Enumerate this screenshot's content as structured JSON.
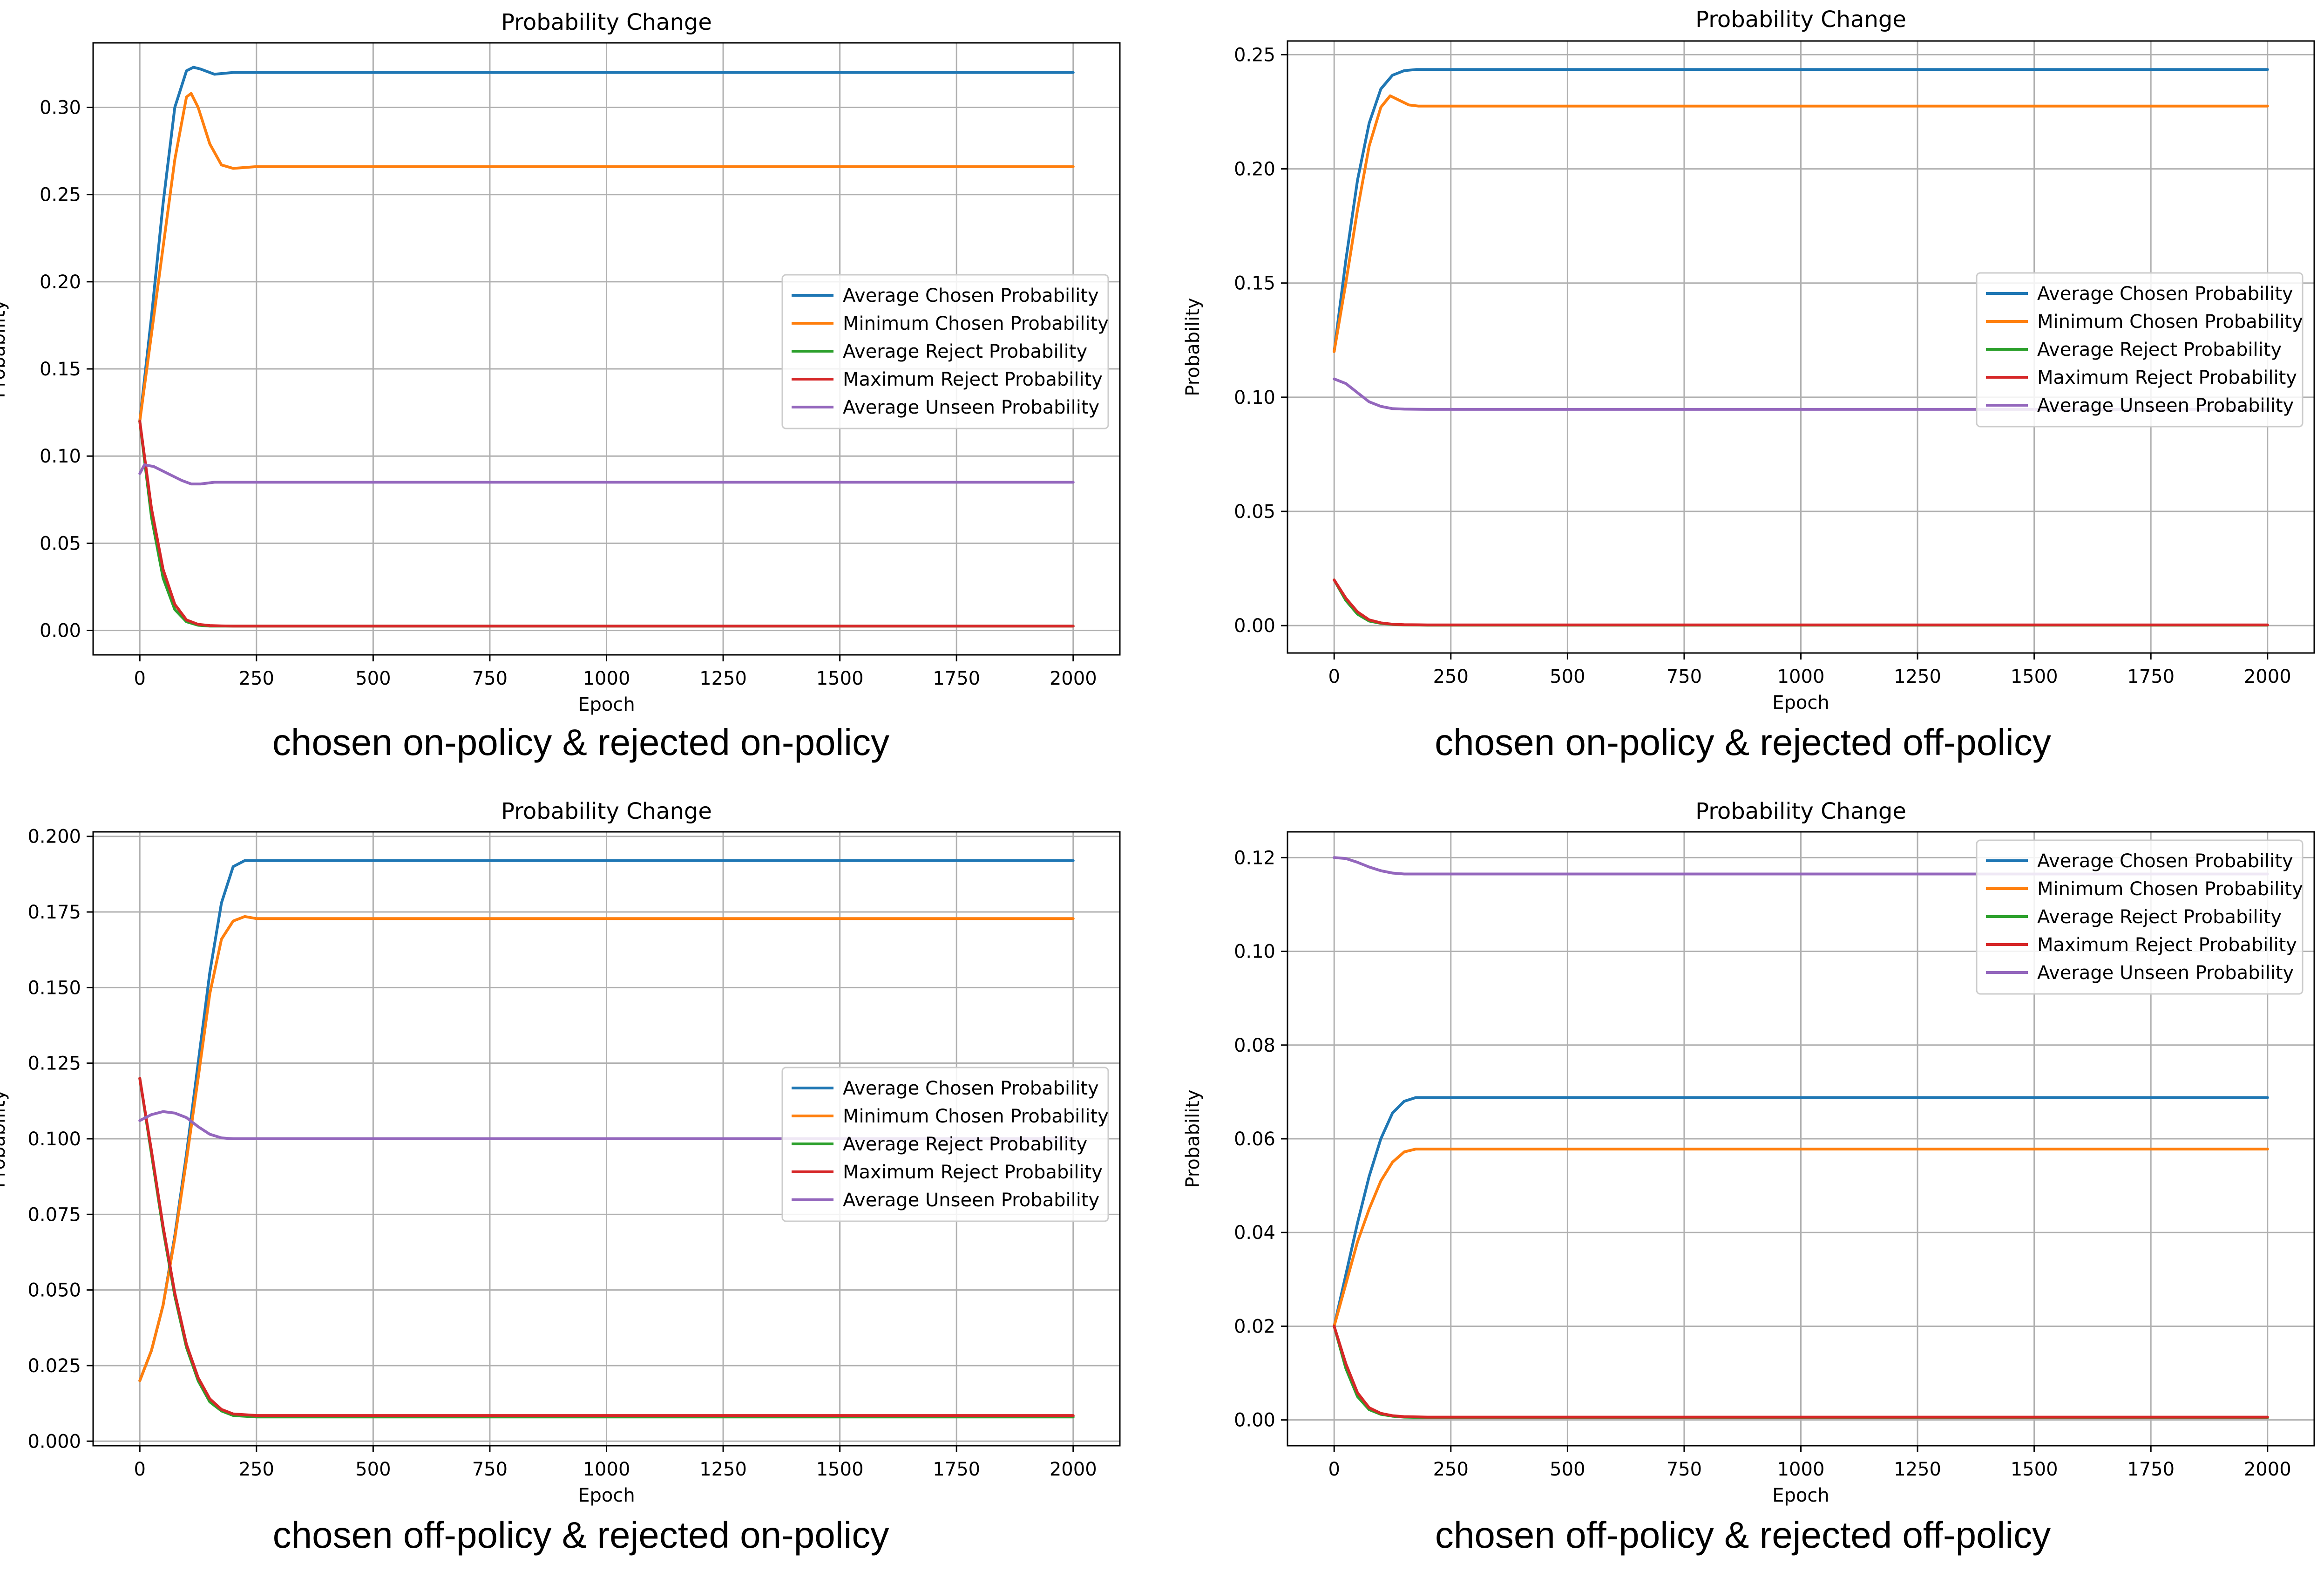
{
  "colors": {
    "avg_chosen": "#1f77b4",
    "min_chosen": "#ff7f0e",
    "avg_reject": "#2ca02c",
    "max_reject": "#d62728",
    "avg_unseen": "#9467bd"
  },
  "captions": [
    "chosen on-policy & rejected on-policy",
    "chosen on-policy & rejected off-policy",
    "chosen off-policy & rejected on-policy",
    "chosen off-policy & rejected off-policy"
  ],
  "chart_data": [
    {
      "type": "line",
      "title": "Probability Change",
      "xlabel": "Epoch",
      "ylabel": "Probability",
      "xlim": [
        -100,
        2100
      ],
      "ylim": [
        -0.014,
        0.337
      ],
      "xticks": [
        0,
        250,
        500,
        750,
        1000,
        1250,
        1500,
        1750,
        2000
      ],
      "xtick_labels": [
        "0",
        "250",
        "500",
        "750",
        "1000",
        "1250",
        "1500",
        "1750",
        "2000"
      ],
      "yticks": [
        0,
        0.05,
        0.1,
        0.15,
        0.2,
        0.25,
        0.3
      ],
      "ytick_labels": [
        "0.00",
        "0.05",
        "0.10",
        "0.15",
        "0.20",
        "0.25",
        "0.30"
      ],
      "grid": true,
      "legend_position": "center-right",
      "series": [
        {
          "name": "Average Chosen Probability",
          "color_key": "avg_chosen",
          "x": [
            0,
            25,
            50,
            75,
            100,
            115,
            130,
            160,
            200,
            250,
            500,
            1000,
            1500,
            2000
          ],
          "y": [
            0.12,
            0.18,
            0.245,
            0.3,
            0.321,
            0.323,
            0.322,
            0.319,
            0.32,
            0.32,
            0.32,
            0.32,
            0.32,
            0.32
          ]
        },
        {
          "name": "Minimum Chosen Probability",
          "color_key": "min_chosen",
          "x": [
            0,
            25,
            50,
            75,
            100,
            110,
            125,
            150,
            175,
            200,
            250,
            500,
            1000,
            1500,
            2000
          ],
          "y": [
            0.12,
            0.17,
            0.22,
            0.27,
            0.306,
            0.308,
            0.3,
            0.279,
            0.267,
            0.265,
            0.266,
            0.266,
            0.266,
            0.266,
            0.266
          ]
        },
        {
          "name": "Average Reject Probability",
          "color_key": "avg_reject",
          "x": [
            0,
            25,
            50,
            75,
            100,
            125,
            150,
            175,
            200,
            250,
            500,
            1000,
            1500,
            2000
          ],
          "y": [
            0.12,
            0.065,
            0.03,
            0.012,
            0.005,
            0.003,
            0.0025,
            0.0025,
            0.0025,
            0.0025,
            0.0025,
            0.0025,
            0.0025,
            0.0025
          ]
        },
        {
          "name": "Maximum Reject Probability",
          "color_key": "max_reject",
          "x": [
            0,
            25,
            50,
            75,
            100,
            125,
            150,
            175,
            200,
            250,
            500,
            1000,
            1500,
            2000
          ],
          "y": [
            0.12,
            0.07,
            0.035,
            0.015,
            0.006,
            0.0035,
            0.0028,
            0.0026,
            0.0025,
            0.0025,
            0.0025,
            0.0025,
            0.0025,
            0.0025
          ]
        },
        {
          "name": "Average Unseen Probability",
          "color_key": "avg_unseen",
          "x": [
            0,
            10,
            30,
            60,
            90,
            110,
            130,
            160,
            200,
            500,
            1000,
            1500,
            2000
          ],
          "y": [
            0.09,
            0.095,
            0.094,
            0.09,
            0.086,
            0.084,
            0.084,
            0.085,
            0.085,
            0.085,
            0.085,
            0.085,
            0.085
          ]
        }
      ],
      "legend": [
        "Average Chosen Probability",
        "Minimum Chosen Probability",
        "Average Reject Probability",
        "Maximum Reject Probability",
        "Average Unseen Probability"
      ]
    },
    {
      "type": "line",
      "title": "Probability Change",
      "xlabel": "Epoch",
      "ylabel": "Probability",
      "xlim": [
        -100,
        2100
      ],
      "ylim": [
        -0.012,
        0.256
      ],
      "xticks": [
        0,
        250,
        500,
        750,
        1000,
        1250,
        1500,
        1750,
        2000
      ],
      "xtick_labels": [
        "0",
        "250",
        "500",
        "750",
        "1000",
        "1250",
        "1500",
        "1750",
        "2000"
      ],
      "yticks": [
        0,
        0.05,
        0.1,
        0.15,
        0.2,
        0.25
      ],
      "ytick_labels": [
        "0.00",
        "0.05",
        "0.10",
        "0.15",
        "0.20",
        "0.25"
      ],
      "grid": true,
      "legend_position": "center-right",
      "series": [
        {
          "name": "Average Chosen Probability",
          "color_key": "avg_chosen",
          "x": [
            0,
            25,
            50,
            75,
            100,
            125,
            150,
            175,
            200,
            250,
            500,
            1000,
            1500,
            2000
          ],
          "y": [
            0.12,
            0.16,
            0.195,
            0.22,
            0.235,
            0.241,
            0.243,
            0.2435,
            0.2435,
            0.2435,
            0.2435,
            0.2435,
            0.2435,
            0.2435
          ]
        },
        {
          "name": "Minimum Chosen Probability",
          "color_key": "min_chosen",
          "x": [
            0,
            25,
            50,
            75,
            100,
            120,
            140,
            160,
            180,
            200,
            250,
            500,
            1000,
            1500,
            2000
          ],
          "y": [
            0.12,
            0.15,
            0.182,
            0.21,
            0.227,
            0.232,
            0.23,
            0.228,
            0.2275,
            0.2275,
            0.2275,
            0.2275,
            0.2275,
            0.2275,
            0.2275
          ]
        },
        {
          "name": "Average Reject Probability",
          "color_key": "avg_reject",
          "x": [
            0,
            25,
            50,
            75,
            100,
            125,
            150,
            200,
            500,
            1000,
            1500,
            2000
          ],
          "y": [
            0.02,
            0.011,
            0.005,
            0.002,
            0.001,
            0.0005,
            0.0003,
            0.0002,
            0.0002,
            0.0002,
            0.0002,
            0.0002
          ]
        },
        {
          "name": "Maximum Reject Probability",
          "color_key": "max_reject",
          "x": [
            0,
            25,
            50,
            75,
            100,
            125,
            150,
            200,
            500,
            1000,
            1500,
            2000
          ],
          "y": [
            0.02,
            0.012,
            0.006,
            0.0025,
            0.0012,
            0.0006,
            0.0004,
            0.0003,
            0.0003,
            0.0003,
            0.0003,
            0.0003
          ]
        },
        {
          "name": "Average Unseen Probability",
          "color_key": "avg_unseen",
          "x": [
            0,
            25,
            50,
            75,
            100,
            125,
            150,
            200,
            500,
            1000,
            1500,
            2000
          ],
          "y": [
            0.108,
            0.106,
            0.102,
            0.098,
            0.096,
            0.095,
            0.0948,
            0.0947,
            0.0947,
            0.0947,
            0.0947,
            0.0947
          ]
        }
      ],
      "legend": [
        "Average Chosen Probability",
        "Minimum Chosen Probability",
        "Average Reject Probability",
        "Maximum Reject Probability",
        "Average Unseen Probability"
      ]
    },
    {
      "type": "line",
      "title": "Probability Change",
      "xlabel": "Epoch",
      "ylabel": "Probability",
      "xlim": [
        -100,
        2100
      ],
      "ylim": [
        -0.0015,
        0.2015
      ],
      "xticks": [
        0,
        250,
        500,
        750,
        1000,
        1250,
        1500,
        1750,
        2000
      ],
      "xtick_labels": [
        "0",
        "250",
        "500",
        "750",
        "1000",
        "1250",
        "1500",
        "1750",
        "2000"
      ],
      "yticks": [
        0,
        0.025,
        0.05,
        0.075,
        0.1,
        0.125,
        0.15,
        0.175,
        0.2
      ],
      "ytick_labels": [
        "0.000",
        "0.025",
        "0.050",
        "0.075",
        "0.100",
        "0.125",
        "0.150",
        "0.175",
        "0.200"
      ],
      "grid": true,
      "legend_position": "center-right",
      "series": [
        {
          "name": "Average Chosen Probability",
          "color_key": "avg_chosen",
          "x": [
            0,
            25,
            50,
            75,
            100,
            125,
            150,
            175,
            200,
            225,
            250,
            500,
            1000,
            1500,
            2000
          ],
          "y": [
            0.02,
            0.03,
            0.045,
            0.068,
            0.095,
            0.125,
            0.155,
            0.178,
            0.19,
            0.192,
            0.192,
            0.192,
            0.192,
            0.192,
            0.192
          ]
        },
        {
          "name": "Minimum Chosen Probability",
          "color_key": "min_chosen",
          "x": [
            0,
            25,
            50,
            75,
            100,
            125,
            150,
            175,
            200,
            225,
            250,
            500,
            1000,
            1500,
            2000
          ],
          "y": [
            0.02,
            0.03,
            0.045,
            0.067,
            0.093,
            0.12,
            0.148,
            0.166,
            0.172,
            0.1735,
            0.1728,
            0.1728,
            0.1728,
            0.1728,
            0.1728
          ]
        },
        {
          "name": "Average Reject Probability",
          "color_key": "avg_reject",
          "x": [
            0,
            25,
            50,
            75,
            100,
            125,
            150,
            175,
            200,
            250,
            500,
            1000,
            1500,
            2000
          ],
          "y": [
            0.12,
            0.095,
            0.07,
            0.048,
            0.031,
            0.02,
            0.013,
            0.01,
            0.0085,
            0.008,
            0.008,
            0.008,
            0.008,
            0.008
          ]
        },
        {
          "name": "Maximum Reject Probability",
          "color_key": "max_reject",
          "x": [
            0,
            25,
            50,
            75,
            100,
            125,
            150,
            175,
            200,
            250,
            500,
            1000,
            1500,
            2000
          ],
          "y": [
            0.12,
            0.096,
            0.071,
            0.049,
            0.032,
            0.021,
            0.014,
            0.0105,
            0.009,
            0.0085,
            0.0085,
            0.0085,
            0.0085,
            0.0085
          ]
        },
        {
          "name": "Average Unseen Probability",
          "color_key": "avg_unseen",
          "x": [
            0,
            25,
            50,
            75,
            100,
            125,
            150,
            175,
            200,
            250,
            500,
            1000,
            1500,
            2000
          ],
          "y": [
            0.106,
            0.108,
            0.109,
            0.1085,
            0.107,
            0.104,
            0.1015,
            0.1003,
            0.1,
            0.1,
            0.1,
            0.1,
            0.1,
            0.1
          ]
        }
      ],
      "legend": [
        "Average Chosen Probability",
        "Minimum Chosen Probability",
        "Average Reject Probability",
        "Maximum Reject Probability",
        "Average Unseen Probability"
      ]
    },
    {
      "type": "line",
      "title": "Probability Change",
      "xlabel": "Epoch",
      "ylabel": "Probability",
      "xlim": [
        -100,
        2100
      ],
      "ylim": [
        -0.0055,
        0.1255
      ],
      "xticks": [
        0,
        250,
        500,
        750,
        1000,
        1250,
        1500,
        1750,
        2000
      ],
      "xtick_labels": [
        "0",
        "250",
        "500",
        "750",
        "1000",
        "1250",
        "1500",
        "1750",
        "2000"
      ],
      "yticks": [
        0,
        0.02,
        0.04,
        0.06,
        0.08,
        0.1,
        0.12
      ],
      "ytick_labels": [
        "0.00",
        "0.02",
        "0.04",
        "0.06",
        "0.08",
        "0.10",
        "0.12"
      ],
      "grid": true,
      "legend_position": "top-right",
      "series": [
        {
          "name": "Average Chosen Probability",
          "color_key": "avg_chosen",
          "x": [
            0,
            25,
            50,
            75,
            100,
            125,
            150,
            175,
            200,
            500,
            1000,
            1500,
            2000
          ],
          "y": [
            0.02,
            0.031,
            0.042,
            0.052,
            0.06,
            0.0655,
            0.068,
            0.0688,
            0.0688,
            0.0688,
            0.0688,
            0.0688,
            0.0688
          ]
        },
        {
          "name": "Minimum Chosen Probability",
          "color_key": "min_chosen",
          "x": [
            0,
            25,
            50,
            75,
            100,
            125,
            150,
            175,
            200,
            500,
            1000,
            1500,
            2000
          ],
          "y": [
            0.02,
            0.029,
            0.038,
            0.045,
            0.051,
            0.055,
            0.0572,
            0.0578,
            0.0578,
            0.0578,
            0.0578,
            0.0578,
            0.0578
          ]
        },
        {
          "name": "Average Reject Probability",
          "color_key": "avg_reject",
          "x": [
            0,
            25,
            50,
            75,
            100,
            125,
            150,
            200,
            500,
            1000,
            1500,
            2000
          ],
          "y": [
            0.02,
            0.011,
            0.005,
            0.0022,
            0.0012,
            0.0008,
            0.0006,
            0.0005,
            0.0005,
            0.0005,
            0.0005,
            0.0005
          ]
        },
        {
          "name": "Maximum Reject Probability",
          "color_key": "max_reject",
          "x": [
            0,
            25,
            50,
            75,
            100,
            125,
            150,
            200,
            500,
            1000,
            1500,
            2000
          ],
          "y": [
            0.02,
            0.012,
            0.0058,
            0.0026,
            0.0014,
            0.0009,
            0.0007,
            0.0006,
            0.0006,
            0.0006,
            0.0006,
            0.0006
          ]
        },
        {
          "name": "Average Unseen Probability",
          "color_key": "avg_unseen",
          "x": [
            0,
            25,
            50,
            75,
            100,
            125,
            150,
            200,
            500,
            1000,
            1500,
            2000
          ],
          "y": [
            0.12,
            0.1198,
            0.119,
            0.118,
            0.1172,
            0.1167,
            0.1165,
            0.1165,
            0.1165,
            0.1165,
            0.1165,
            0.1165
          ]
        }
      ],
      "legend": [
        "Average Chosen Probability",
        "Minimum Chosen Probability",
        "Average Reject Probability",
        "Maximum Reject Probability",
        "Average Unseen Probability"
      ]
    }
  ]
}
